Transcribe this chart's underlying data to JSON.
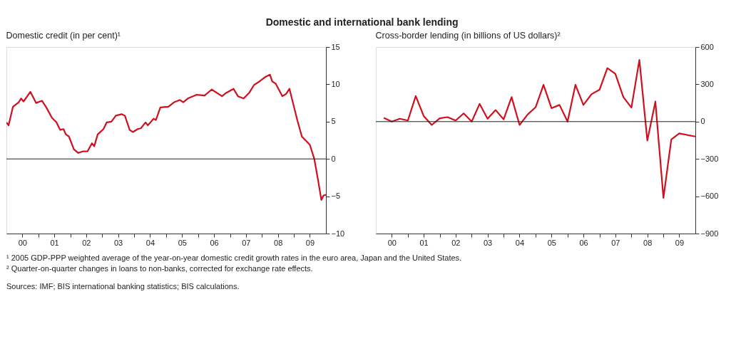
{
  "chart_data": [
    {
      "type": "line",
      "title": "Domestic and international bank lending",
      "ylabel": "Domestic credit (in per cent)¹",
      "x": [
        "2000-01-01",
        "2000-01-26",
        "2000-03-16",
        "2000-05-21",
        "2000-06-16",
        "2000-07-15",
        "2000-10-01",
        "2000-12-05",
        "2001-02-10",
        "2001-04-01",
        "2001-06-05",
        "2001-07-26",
        "2001-09-05",
        "2001-10-15",
        "2001-11-10",
        "2001-12-16",
        "2002-02-10",
        "2002-04-01",
        "2002-05-21",
        "2002-07-15",
        "2002-09-05",
        "2002-10-01",
        "2002-11-10",
        "2003-01-15",
        "2003-02-21",
        "2003-04-15",
        "2003-06-05",
        "2003-08-10",
        "2003-09-16",
        "2003-11-10",
        "2003-12-16",
        "2004-02-10",
        "2004-03-16",
        "2004-05-10",
        "2004-06-05",
        "2004-08-10",
        "2004-09-05",
        "2004-10-26",
        "2005-01-26",
        "2005-04-01",
        "2005-06-05",
        "2005-07-15",
        "2005-09-05",
        "2005-12-16",
        "2006-03-16",
        "2006-06-05",
        "2006-10-01",
        "2006-11-10",
        "2007-02-10",
        "2007-04-01",
        "2007-06-05",
        "2007-08-10",
        "2007-10-01",
        "2007-12-05",
        "2008-02-10",
        "2008-04-01",
        "2008-04-26",
        "2008-06-05",
        "2008-08-21",
        "2008-10-01",
        "2008-11-10",
        "2008-12-16",
        "2009-02-10",
        "2009-04-01",
        "2009-07-01",
        "2009-08-21",
        "2009-10-01",
        "2009-11-10",
        "2009-12-05",
        "2010-01-01"
      ],
      "series": [
        {
          "color": "#d0101f",
          "values": [
            4.9,
            4.5,
            7.0,
            7.6,
            8.1,
            7.7,
            9.0,
            7.5,
            7.8,
            6.9,
            5.5,
            4.9,
            3.9,
            4.0,
            3.3,
            3.0,
            1.3,
            0.8,
            1.0,
            1.0,
            2.1,
            1.7,
            3.3,
            4.0,
            4.9,
            5.0,
            5.8,
            6.0,
            5.8,
            3.9,
            3.6,
            4.0,
            4.1,
            4.9,
            4.5,
            5.4,
            5.2,
            6.9,
            7.0,
            7.6,
            7.9,
            7.6,
            8.1,
            8.6,
            8.5,
            9.3,
            8.4,
            8.8,
            9.4,
            8.4,
            8.1,
            8.9,
            9.9,
            10.4,
            11.0,
            11.3,
            10.4,
            10.1,
            8.4,
            8.7,
            9.4,
            7.7,
            5.1,
            3.0,
            1.9,
            0.0,
            -2.7,
            -5.5,
            -4.9,
            -4.8
          ]
        }
      ],
      "xlim": [
        "2000-01-01",
        "2010-01-01"
      ],
      "xticks": [
        {
          "value": "2000-07-01",
          "label": "00"
        },
        {
          "value": "2001-01-01",
          "label": null
        },
        {
          "value": "2001-07-01",
          "label": "01"
        },
        {
          "value": "2002-01-01",
          "label": null
        },
        {
          "value": "2002-07-01",
          "label": "02"
        },
        {
          "value": "2003-01-01",
          "label": null
        },
        {
          "value": "2003-07-01",
          "label": "03"
        },
        {
          "value": "2004-01-01",
          "label": null
        },
        {
          "value": "2004-07-01",
          "label": "04"
        },
        {
          "value": "2005-01-01",
          "label": null
        },
        {
          "value": "2005-07-01",
          "label": "05"
        },
        {
          "value": "2006-01-01",
          "label": null
        },
        {
          "value": "2006-07-01",
          "label": "06"
        },
        {
          "value": "2007-01-01",
          "label": null
        },
        {
          "value": "2007-07-01",
          "label": "07"
        },
        {
          "value": "2008-01-01",
          "label": null
        },
        {
          "value": "2008-07-01",
          "label": "08"
        },
        {
          "value": "2009-01-01",
          "label": null
        },
        {
          "value": "2009-07-01",
          "label": "09"
        }
      ],
      "ylim": [
        -10,
        15
      ],
      "yticks": [
        -10,
        -5,
        0,
        5,
        10,
        15
      ],
      "ref_lines": [
        {
          "axis": "y",
          "value": 0
        }
      ],
      "annotations": [
        "¹ 2005 GDP-PPP weighted average of the year-on-year domestic credit growth rates in the euro area, Japan and the United States.",
        "² Quarter-on-quarter changes in loans to non-banks, corrected for exchange rate effects.",
        "Sources: IMF; BIS international banking statistics; BIS calculations."
      ]
    },
    {
      "type": "line",
      "ylabel": "Cross-border lending (in billions of US dollars)²",
      "x": [
        "2000-04-01",
        "2000-07-01",
        "2000-10-01",
        "2001-01-01",
        "2001-04-01",
        "2001-07-01",
        "2001-10-01",
        "2002-01-01",
        "2002-04-01",
        "2002-07-01",
        "2002-10-01",
        "2003-01-01",
        "2003-04-01",
        "2003-07-01",
        "2003-10-01",
        "2004-01-01",
        "2004-04-01",
        "2004-07-01",
        "2004-10-01",
        "2005-01-01",
        "2005-04-01",
        "2005-07-01",
        "2005-10-01",
        "2006-01-01",
        "2006-04-01",
        "2006-07-01",
        "2006-10-01",
        "2007-01-01",
        "2007-04-01",
        "2007-07-01",
        "2007-10-01",
        "2008-01-01",
        "2008-04-01",
        "2008-07-01",
        "2008-10-01",
        "2009-01-01",
        "2009-04-01",
        "2009-07-01",
        "2010-01-01"
      ],
      "series": [
        {
          "color": "#d0101f",
          "values": [
            30,
            0,
            23,
            9,
            206,
            45,
            -27,
            27,
            36,
            9,
            66,
            0,
            143,
            23,
            93,
            18,
            197,
            -27,
            57,
            116,
            296,
            108,
            134,
            0,
            296,
            134,
            220,
            256,
            430,
            385,
            197,
            113,
            496,
            -152,
            161,
            -613,
            -143,
            -95,
            -120
          ]
        }
      ],
      "xlim": [
        "2000-01-01",
        "2010-01-01"
      ],
      "xticks": [
        {
          "value": "2000-07-01",
          "label": "00"
        },
        {
          "value": "2001-01-01",
          "label": null
        },
        {
          "value": "2001-07-01",
          "label": "01"
        },
        {
          "value": "2002-01-01",
          "label": null
        },
        {
          "value": "2002-07-01",
          "label": "02"
        },
        {
          "value": "2003-01-01",
          "label": null
        },
        {
          "value": "2003-07-01",
          "label": "03"
        },
        {
          "value": "2004-01-01",
          "label": null
        },
        {
          "value": "2004-07-01",
          "label": "04"
        },
        {
          "value": "2005-01-01",
          "label": null
        },
        {
          "value": "2005-07-01",
          "label": "05"
        },
        {
          "value": "2006-01-01",
          "label": null
        },
        {
          "value": "2006-07-01",
          "label": "06"
        },
        {
          "value": "2007-01-01",
          "label": null
        },
        {
          "value": "2007-07-01",
          "label": "07"
        },
        {
          "value": "2008-01-01",
          "label": null
        },
        {
          "value": "2008-07-01",
          "label": "08"
        },
        {
          "value": "2009-01-01",
          "label": null
        },
        {
          "value": "2009-07-01",
          "label": "09"
        }
      ],
      "ylim": [
        -900,
        600
      ],
      "yticks": [
        -900,
        -600,
        -300,
        0,
        300,
        600
      ],
      "ref_lines": [
        {
          "axis": "y",
          "value": 0
        }
      ]
    }
  ]
}
